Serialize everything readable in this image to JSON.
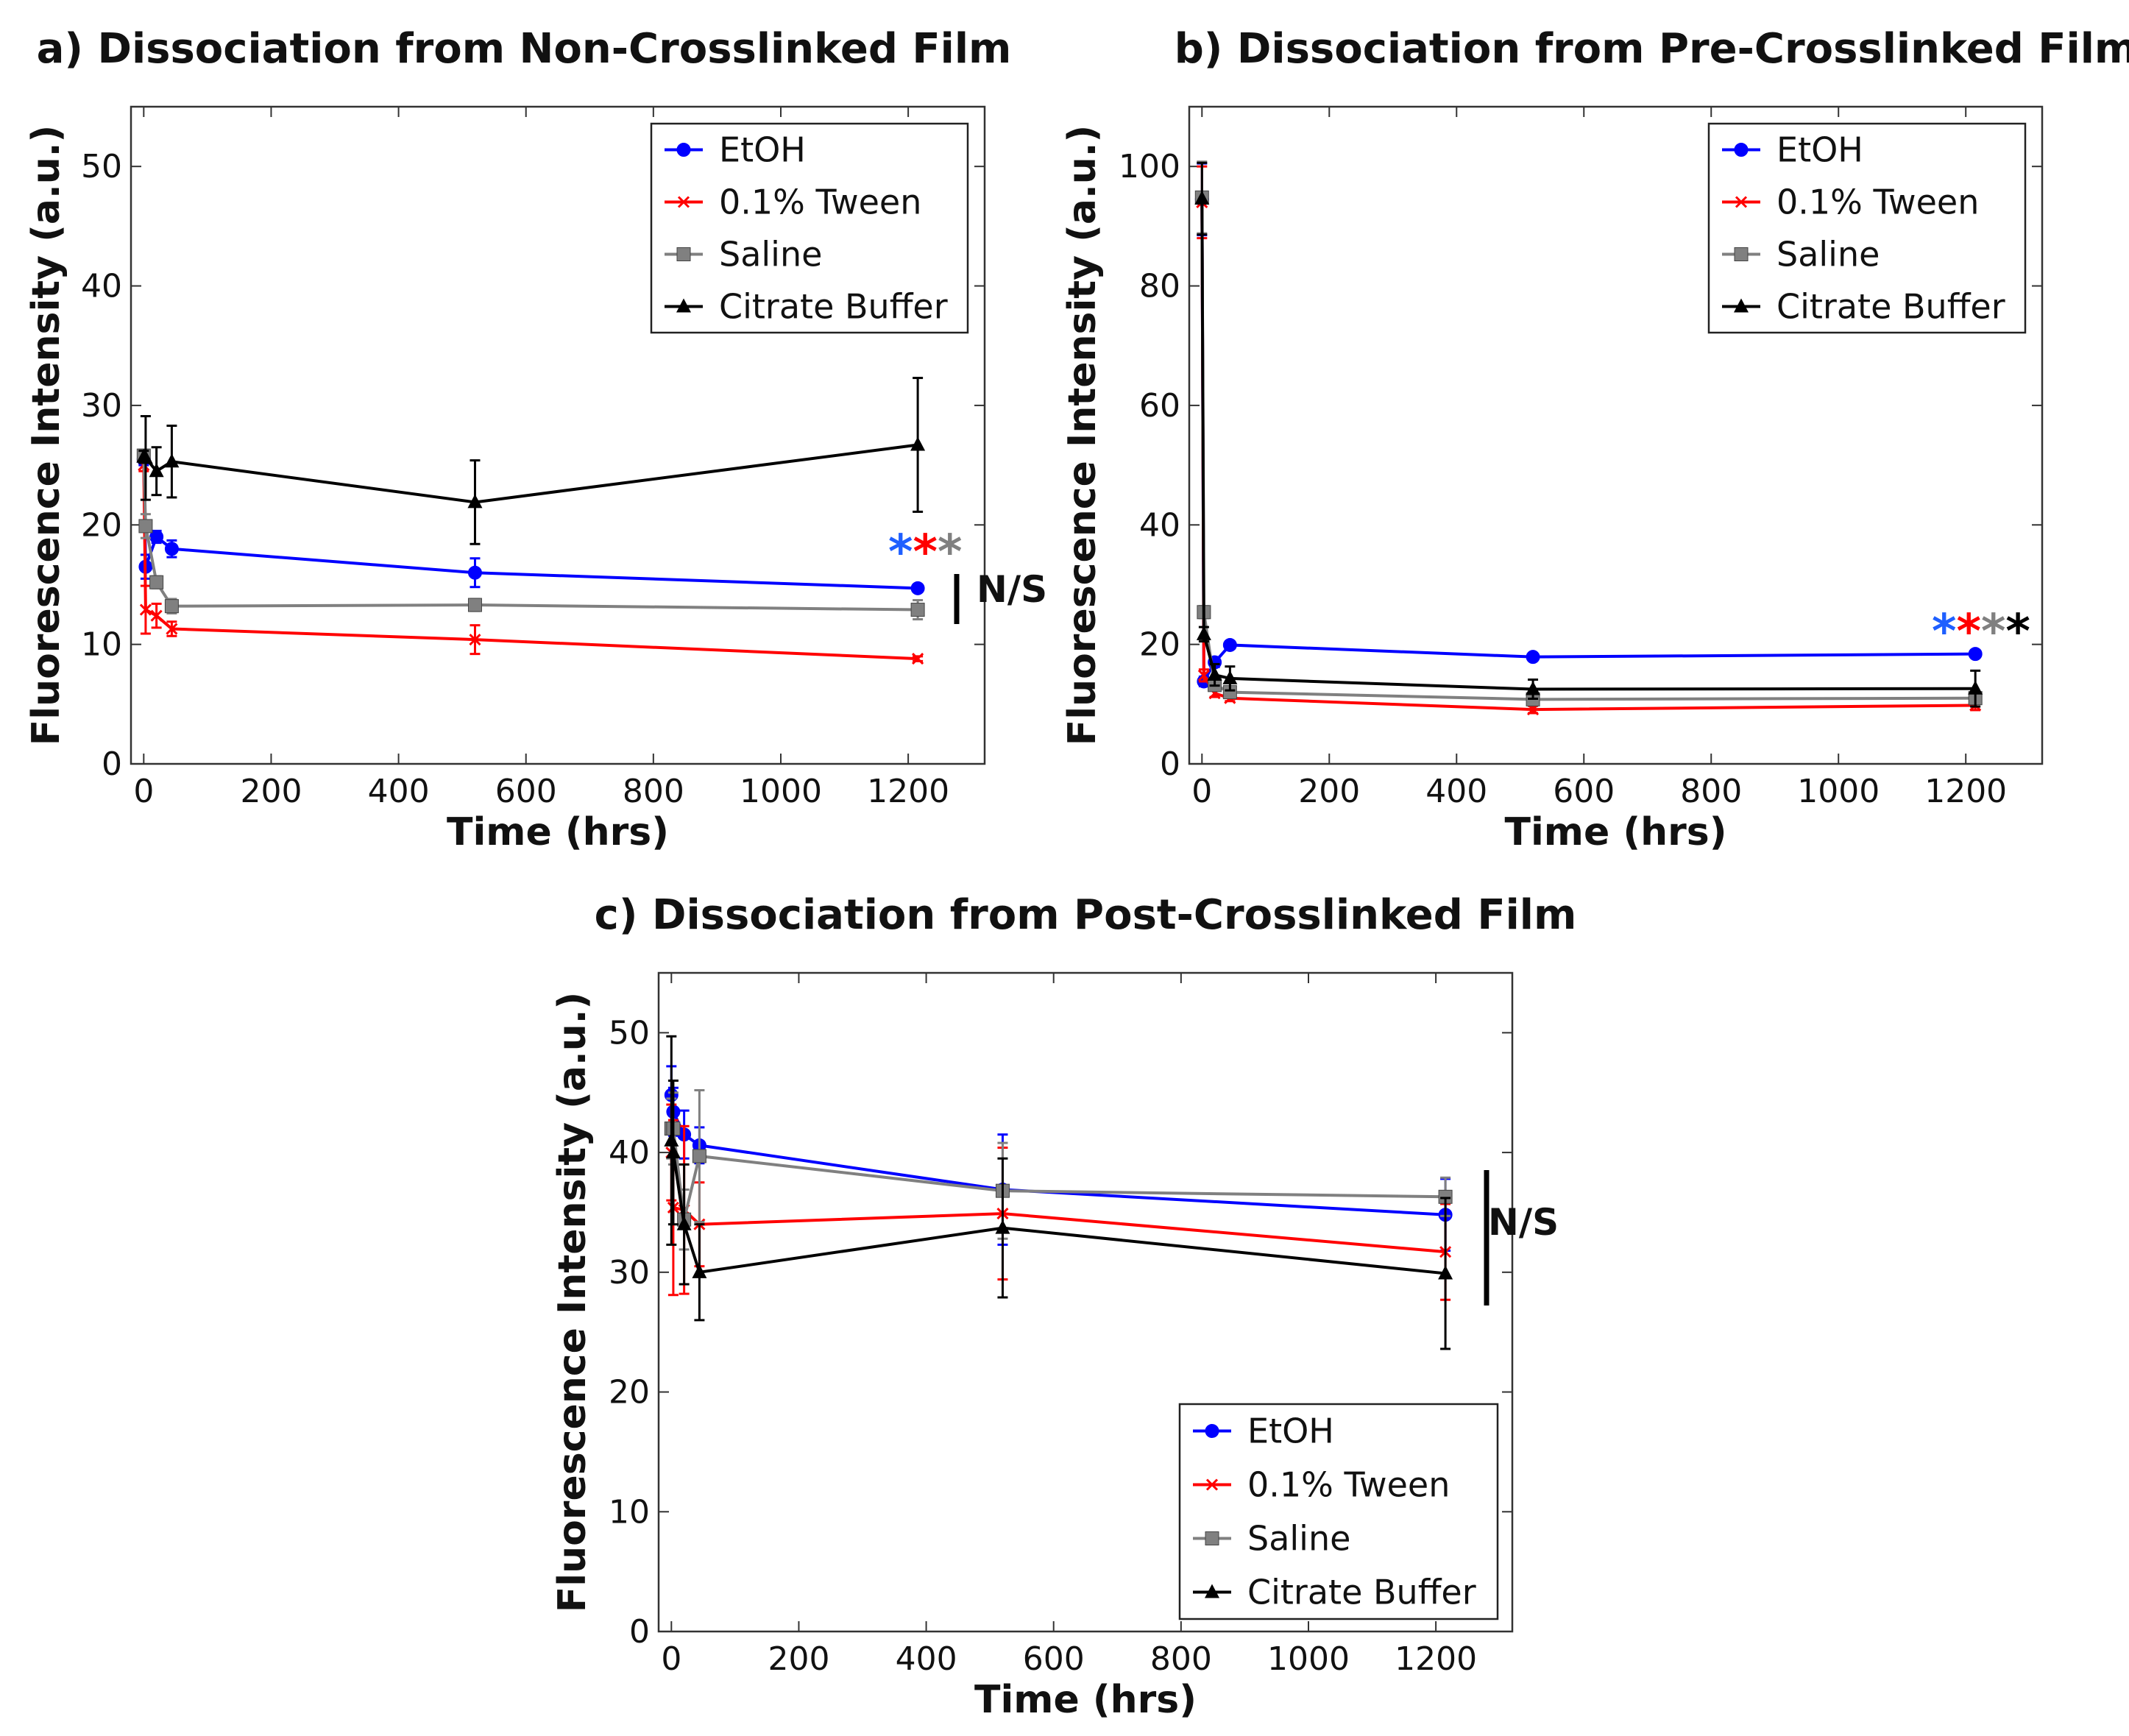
{
  "chart_data": [
    {
      "id": "a",
      "type": "line",
      "title": "a) Dissociation from Non-Crosslinked Film",
      "xlabel": "Time (hrs)",
      "ylabel": "Fluorescence Intensity (a.u.)",
      "xlim": [
        -20,
        1320
      ],
      "ylim": [
        0,
        55
      ],
      "xticks": [
        0,
        200,
        400,
        600,
        800,
        1000,
        1200
      ],
      "yticks": [
        0,
        10,
        20,
        30,
        40,
        50
      ],
      "legend": "top-right",
      "series": [
        {
          "name": "EtOH",
          "color": "#0000ff",
          "marker": "circle",
          "x": [
            0,
            3,
            20,
            44,
            520,
            1215
          ],
          "y": [
            25.5,
            16.5,
            19.0,
            18.0,
            16.0,
            14.7
          ],
          "err": [
            0.5,
            1.0,
            0.5,
            0.7,
            1.2,
            0.3
          ]
        },
        {
          "name": "0.1% Tween",
          "color": "#ff0000",
          "marker": "x",
          "x": [
            0,
            3,
            20,
            44,
            520,
            1215
          ],
          "y": [
            25.0,
            12.9,
            12.4,
            11.3,
            10.4,
            8.8
          ],
          "err": [
            0.5,
            2.0,
            1.0,
            0.6,
            1.2,
            0.2
          ]
        },
        {
          "name": "Saline",
          "color": "#808080",
          "marker": "square",
          "x": [
            0,
            3,
            20,
            44,
            520,
            1215
          ],
          "y": [
            25.8,
            19.9,
            15.2,
            13.2,
            13.3,
            12.9
          ],
          "err": [
            0.5,
            1.0,
            0.5,
            0.6,
            0.5,
            0.8
          ]
        },
        {
          "name": "Citrate Buffer",
          "color": "#000000",
          "marker": "triangle",
          "x": [
            0,
            3,
            20,
            44,
            520,
            1215
          ],
          "y": [
            25.7,
            25.6,
            24.5,
            25.3,
            21.9,
            26.7
          ],
          "err": [
            0.5,
            3.5,
            2.0,
            3.0,
            3.5,
            5.6
          ]
        }
      ],
      "annotations": {
        "stars": [
          {
            "text": "*",
            "color": "#1f5fff"
          },
          {
            "text": "*",
            "color": "#ff0000"
          },
          {
            "text": "*",
            "color": "#808080"
          }
        ],
        "ns_label": "N/S"
      }
    },
    {
      "id": "b",
      "type": "line",
      "title": "b) Dissociation from Pre-Crosslinked Film",
      "xlabel": "Time (hrs)",
      "ylabel": "Fluorescence Intensity (a.u.)",
      "xlim": [
        -20,
        1320
      ],
      "ylim": [
        0,
        110
      ],
      "xticks": [
        0,
        200,
        400,
        600,
        800,
        1000,
        1200
      ],
      "yticks": [
        0,
        20,
        40,
        60,
        80,
        100
      ],
      "legend": "top-right",
      "series": [
        {
          "name": "EtOH",
          "color": "#0000ff",
          "marker": "circle",
          "x": [
            0,
            3,
            20,
            44,
            520,
            1215
          ],
          "y": [
            94.5,
            13.8,
            17.0,
            19.9,
            17.9,
            18.4
          ],
          "err": [
            6.0,
            0.8,
            0.8,
            0.6,
            0.6,
            0.6
          ]
        },
        {
          "name": "0.1% Tween",
          "color": "#ff0000",
          "marker": "x",
          "x": [
            0,
            3,
            20,
            44,
            520,
            1215
          ],
          "y": [
            94.0,
            14.8,
            11.8,
            11.0,
            9.1,
            9.8
          ],
          "err": [
            6.0,
            1.0,
            0.6,
            0.5,
            0.6,
            0.8
          ]
        },
        {
          "name": "Saline",
          "color": "#808080",
          "marker": "square",
          "x": [
            0,
            3,
            20,
            44,
            520,
            1215
          ],
          "y": [
            94.8,
            25.4,
            13.2,
            12.0,
            10.8,
            11.0
          ],
          "err": [
            6.0,
            1.0,
            0.8,
            0.8,
            0.6,
            0.6
          ]
        },
        {
          "name": "Citrate Buffer",
          "color": "#000000",
          "marker": "triangle",
          "x": [
            0,
            3,
            20,
            44,
            520,
            1215
          ],
          "y": [
            94.6,
            21.7,
            14.9,
            14.3,
            12.5,
            12.6
          ],
          "err": [
            6.0,
            1.2,
            1.8,
            2.0,
            1.6,
            3.0
          ]
        }
      ],
      "annotations": {
        "stars": [
          {
            "text": "*",
            "color": "#1f5fff"
          },
          {
            "text": "*",
            "color": "#ff0000"
          },
          {
            "text": "*",
            "color": "#808080"
          },
          {
            "text": "*",
            "color": "#000000"
          }
        ]
      }
    },
    {
      "id": "c",
      "type": "line",
      "title": "c) Dissociation from Post-Crosslinked Film",
      "xlabel": "Time (hrs)",
      "ylabel": "Fluorescence Intensity (a.u.)",
      "xlim": [
        -20,
        1320
      ],
      "ylim": [
        0,
        55
      ],
      "xticks": [
        0,
        200,
        400,
        600,
        800,
        1000,
        1200
      ],
      "yticks": [
        0,
        10,
        20,
        30,
        40,
        50
      ],
      "legend": "bottom-right",
      "series": [
        {
          "name": "EtOH",
          "color": "#0000ff",
          "marker": "circle",
          "x": [
            0,
            3,
            20,
            44,
            520,
            1215
          ],
          "y": [
            44.8,
            43.4,
            41.5,
            40.6,
            36.9,
            34.8
          ],
          "err": [
            2.4,
            2.0,
            2.0,
            1.5,
            4.6,
            3.0
          ]
        },
        {
          "name": "0.1% Tween",
          "color": "#ff0000",
          "marker": "x",
          "x": [
            0,
            3,
            20,
            44,
            520,
            1215
          ],
          "y": [
            40.0,
            35.4,
            35.2,
            34.0,
            34.9,
            31.7
          ],
          "err": [
            4.0,
            7.3,
            7.0,
            3.5,
            5.5,
            4.0
          ]
        },
        {
          "name": "Saline",
          "color": "#808080",
          "marker": "square",
          "x": [
            0,
            3,
            20,
            44,
            520,
            1215
          ],
          "y": [
            42.0,
            42.0,
            34.4,
            39.7,
            36.8,
            36.3
          ],
          "err": [
            2.5,
            3.0,
            2.5,
            5.5,
            4.0,
            1.6
          ]
        },
        {
          "name": "Citrate Buffer",
          "color": "#000000",
          "marker": "triangle",
          "x": [
            0,
            3,
            20,
            44,
            520,
            1215
          ],
          "y": [
            41.0,
            40.0,
            34.0,
            30.0,
            33.7,
            29.9
          ],
          "err": [
            8.7,
            6.0,
            5.0,
            4.0,
            5.8,
            6.3
          ]
        }
      ],
      "annotations": {
        "ns_label": "N/S"
      }
    }
  ]
}
